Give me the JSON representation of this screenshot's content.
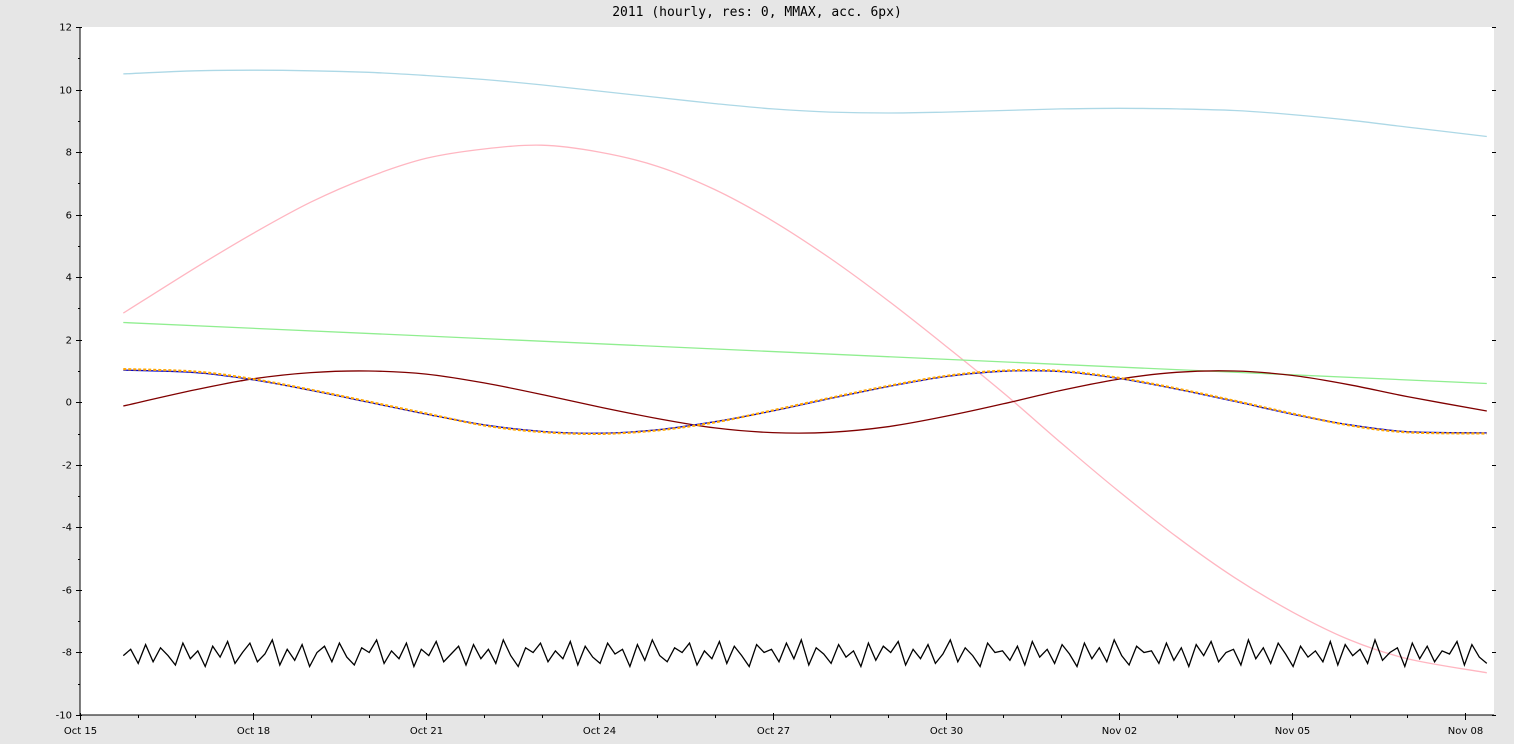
{
  "chart_data": {
    "type": "line",
    "title": "2011 (hourly, res: 0, MMAX, acc. 6px)",
    "xlabel": "",
    "ylabel": "",
    "x_start": "2011-10-15",
    "x_end": "2011-11-08T12:00",
    "x_ticks": [
      {
        "label": "Oct 15",
        "date": "2011-10-15"
      },
      {
        "label": "Oct 18",
        "date": "2011-10-18"
      },
      {
        "label": "Oct 21",
        "date": "2011-10-21"
      },
      {
        "label": "Oct 24",
        "date": "2011-10-24"
      },
      {
        "label": "Oct 27",
        "date": "2011-10-27"
      },
      {
        "label": "Oct 30",
        "date": "2011-10-30"
      },
      {
        "label": "Nov 02",
        "date": "2011-11-02"
      },
      {
        "label": "Nov 05",
        "date": "2011-11-05"
      },
      {
        "label": "Nov 08",
        "date": "2011-11-08"
      }
    ],
    "ylim": [
      -10,
      12
    ],
    "y_ticks": [
      -10,
      -8,
      -6,
      -4,
      -2,
      0,
      2,
      4,
      6,
      8,
      10,
      12
    ],
    "grid": false,
    "legend": "none",
    "series": [
      {
        "color": "#add8e6",
        "x": [
          "2011-10-15T18:00",
          "2011-10-17T00:00",
          "2011-10-18T00:00",
          "2011-10-19T00:00",
          "2011-10-20T00:00",
          "2011-10-21T00:00",
          "2011-10-22T00:00",
          "2011-10-23T00:00",
          "2011-10-24T00:00",
          "2011-10-25T00:00",
          "2011-10-26T00:00",
          "2011-10-27T00:00",
          "2011-10-28T00:00",
          "2011-10-29T00:00",
          "2011-10-30T00:00",
          "2011-10-31T00:00",
          "2011-11-01T00:00",
          "2011-11-02T00:00",
          "2011-11-03T00:00",
          "2011-11-04T00:00",
          "2011-11-05T00:00",
          "2011-11-06T00:00",
          "2011-11-07T00:00",
          "2011-11-08T09:00"
        ],
        "y": [
          10.5,
          10.6,
          10.62,
          10.6,
          10.55,
          10.45,
          10.32,
          10.15,
          9.95,
          9.75,
          9.55,
          9.38,
          9.28,
          9.25,
          9.28,
          9.33,
          9.38,
          9.4,
          9.38,
          9.33,
          9.2,
          9.02,
          8.8,
          8.5
        ]
      },
      {
        "color": "#ffb6c1",
        "x": [
          "2011-10-15T18:00",
          "2011-10-17T00:00",
          "2011-10-18T00:00",
          "2011-10-19T00:00",
          "2011-10-20T00:00",
          "2011-10-21T00:00",
          "2011-10-22T00:00",
          "2011-10-23T00:00",
          "2011-10-24T00:00",
          "2011-10-25T00:00",
          "2011-10-26T00:00",
          "2011-10-27T00:00",
          "2011-10-28T00:00",
          "2011-10-29T00:00",
          "2011-10-30T00:00",
          "2011-10-31T00:00",
          "2011-11-01T00:00",
          "2011-11-02T00:00",
          "2011-11-03T00:00",
          "2011-11-04T00:00",
          "2011-11-05T00:00",
          "2011-11-06T00:00",
          "2011-11-07T00:00",
          "2011-11-08T09:00"
        ],
        "y": [
          2.85,
          4.3,
          5.4,
          6.4,
          7.2,
          7.8,
          8.1,
          8.22,
          8.0,
          7.55,
          6.8,
          5.8,
          4.6,
          3.25,
          1.8,
          0.3,
          -1.3,
          -2.85,
          -4.3,
          -5.6,
          -6.7,
          -7.6,
          -8.2,
          -8.65
        ]
      },
      {
        "color": "#90ee90",
        "x": [
          "2011-10-15T18:00",
          "2011-11-08T09:00"
        ],
        "y": [
          2.55,
          0.6
        ]
      },
      {
        "color": "#800000",
        "x": [
          "2011-10-15T18:00",
          "2011-10-17T00:00",
          "2011-10-18T00:00",
          "2011-10-19T00:00",
          "2011-10-20T00:00",
          "2011-10-21T00:00",
          "2011-10-22T00:00",
          "2011-10-23T00:00",
          "2011-10-24T00:00",
          "2011-10-25T00:00",
          "2011-10-26T00:00",
          "2011-10-27T00:00",
          "2011-10-28T00:00",
          "2011-10-29T00:00",
          "2011-10-30T00:00",
          "2011-10-31T00:00",
          "2011-11-01T00:00",
          "2011-11-02T00:00",
          "2011-11-03T00:00",
          "2011-11-04T00:00",
          "2011-11-05T00:00",
          "2011-11-06T00:00",
          "2011-11-07T00:00",
          "2011-11-08T09:00"
        ],
        "y": [
          -0.12,
          0.4,
          0.75,
          0.95,
          1.0,
          0.9,
          0.62,
          0.25,
          -0.15,
          -0.52,
          -0.82,
          -0.97,
          -0.96,
          -0.78,
          -0.45,
          -0.05,
          0.38,
          0.74,
          0.96,
          1.0,
          0.86,
          0.56,
          0.18,
          -0.28
        ]
      },
      {
        "color": "#0000cd",
        "x": [
          "2011-10-15T18:00",
          "2011-10-17T00:00",
          "2011-10-18T00:00",
          "2011-10-19T00:00",
          "2011-10-20T00:00",
          "2011-10-21T00:00",
          "2011-10-22T00:00",
          "2011-10-23T00:00",
          "2011-10-24T00:00",
          "2011-10-25T00:00",
          "2011-10-26T00:00",
          "2011-10-27T00:00",
          "2011-10-28T00:00",
          "2011-10-29T00:00",
          "2011-10-30T00:00",
          "2011-10-31T00:00",
          "2011-11-01T00:00",
          "2011-11-02T00:00",
          "2011-11-03T00:00",
          "2011-11-04T00:00",
          "2011-11-05T00:00",
          "2011-11-06T00:00",
          "2011-11-07T00:00",
          "2011-11-08T09:00"
        ],
        "y": [
          1.03,
          0.95,
          0.72,
          0.38,
          0.0,
          -0.38,
          -0.72,
          -0.93,
          -0.99,
          -0.88,
          -0.62,
          -0.28,
          0.12,
          0.5,
          0.82,
          0.99,
          0.98,
          0.76,
          0.42,
          0.03,
          -0.38,
          -0.72,
          -0.94,
          -0.98
        ]
      },
      {
        "color": "#ffa500",
        "x": [
          "2011-10-15T18:00",
          "2011-10-17T00:00",
          "2011-10-18T00:00",
          "2011-10-19T00:00",
          "2011-10-20T00:00",
          "2011-10-21T00:00",
          "2011-10-22T00:00",
          "2011-10-23T00:00",
          "2011-10-24T00:00",
          "2011-10-25T00:00",
          "2011-10-26T00:00",
          "2011-10-27T00:00",
          "2011-10-28T00:00",
          "2011-10-29T00:00",
          "2011-10-30T00:00",
          "2011-10-31T00:00",
          "2011-11-01T00:00",
          "2011-11-02T00:00",
          "2011-11-03T00:00",
          "2011-11-04T00:00",
          "2011-11-05T00:00",
          "2011-11-06T00:00",
          "2011-11-07T00:00",
          "2011-11-08T09:00"
        ],
        "y": [
          1.06,
          0.98,
          0.74,
          0.4,
          0.02,
          -0.36,
          -0.74,
          -0.95,
          -1.01,
          -0.9,
          -0.64,
          -0.26,
          0.14,
          0.52,
          0.84,
          1.01,
          1.0,
          0.78,
          0.44,
          0.05,
          -0.36,
          -0.74,
          -0.96,
          -1.0
        ]
      },
      {
        "color": "#000000",
        "x_start": "2011-10-15T18:00",
        "x_end": "2011-11-08T09:00",
        "y": [
          -8.1,
          -7.9,
          -8.35,
          -7.75,
          -8.3,
          -7.85,
          -8.1,
          -8.4,
          -7.7,
          -8.2,
          -7.95,
          -8.45,
          -7.8,
          -8.15,
          -7.65,
          -8.35,
          -8.0,
          -7.7,
          -8.3,
          -8.05,
          -7.6,
          -8.4,
          -7.9,
          -8.25,
          -7.75,
          -8.45,
          -8.0,
          -7.8,
          -8.3,
          -7.7,
          -8.15,
          -8.4,
          -7.85,
          -8.0,
          -7.6,
          -8.35,
          -7.95,
          -8.2,
          -7.7,
          -8.45,
          -7.9,
          -8.1,
          -7.65,
          -8.3,
          -8.05,
          -7.8,
          -8.4,
          -7.75,
          -8.2,
          -7.9,
          -8.35,
          -7.6,
          -8.1,
          -8.45,
          -7.85,
          -8.0,
          -7.7,
          -8.3,
          -7.95,
          -8.2,
          -7.65,
          -8.4,
          -7.8,
          -8.15,
          -8.35,
          -7.7,
          -8.05,
          -7.9,
          -8.45,
          -7.75,
          -8.25,
          -7.6,
          -8.1,
          -8.3,
          -7.85,
          -8.0,
          -7.7,
          -8.4,
          -7.95,
          -8.2,
          -7.65,
          -8.35,
          -7.8,
          -8.1,
          -8.45,
          -7.75,
          -8.0,
          -7.9,
          -8.3,
          -7.7,
          -8.2,
          -7.6,
          -8.4,
          -7.85,
          -8.05,
          -8.35,
          -7.75,
          -8.15,
          -7.95,
          -8.45,
          -7.7,
          -8.25,
          -7.8,
          -8.0,
          -7.65,
          -8.4,
          -7.9,
          -8.2,
          -7.75,
          -8.35,
          -8.05,
          -7.6,
          -8.3,
          -7.85,
          -8.1,
          -8.45,
          -7.7,
          -8.0,
          -7.95,
          -8.25,
          -7.8,
          -8.4,
          -7.65,
          -8.15,
          -7.9,
          -8.35,
          -7.75,
          -8.05,
          -8.45,
          -7.7,
          -8.2,
          -7.85,
          -8.3,
          -7.6,
          -8.1,
          -8.4,
          -7.8,
          -8.0,
          -7.95,
          -8.35,
          -7.7,
          -8.25,
          -7.85,
          -8.45,
          -7.75,
          -8.1,
          -7.65,
          -8.3,
          -8.0,
          -7.9,
          -8.4,
          -7.6,
          -8.2,
          -7.85,
          -8.35,
          -7.7,
          -8.05,
          -8.45,
          -7.8,
          -8.15,
          -7.95,
          -8.3,
          -7.65,
          -8.4,
          -7.75,
          -8.1,
          -7.9,
          -8.35,
          -7.6,
          -8.25,
          -8.0,
          -7.85,
          -8.45,
          -7.7,
          -8.2,
          -7.8,
          -8.3,
          -7.95,
          -8.05,
          -7.65,
          -8.4,
          -7.75,
          -8.15,
          -8.35
        ]
      }
    ]
  }
}
